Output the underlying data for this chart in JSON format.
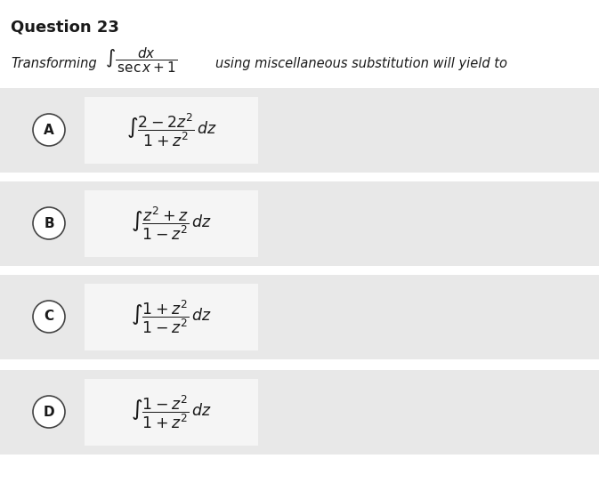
{
  "title": "Question 23",
  "title_fontsize": 13,
  "bg_color": "#ffffff",
  "row_bg_color": "#e8e8e8",
  "box_bg_color": "#f5f5f5",
  "text_color": "#1a1a1a",
  "preamble": "Transforming",
  "preamble_suffix": "using miscellaneous substitution will yield to",
  "option_labels": [
    "A",
    "B",
    "C",
    "D"
  ],
  "option_exprs": [
    "\\int \\dfrac{2 - 2z^2}{1 + z^2}\\,dz",
    "\\int \\dfrac{z^2 + z}{1 - z^2}\\,dz",
    "\\int \\dfrac{1 + z^2}{1 - z^2}\\,dz",
    "\\int \\dfrac{1 - z^2}{1 + z^2}\\,dz"
  ],
  "figsize": [
    6.73,
    5.61
  ],
  "dpi": 100
}
